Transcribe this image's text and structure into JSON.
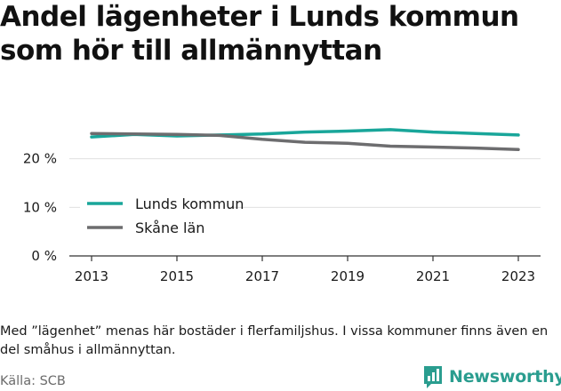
{
  "title": "Andel lägenheter i Lunds kommun\nsom hör till allmännyttan",
  "note": "Med ”lägenhet” menas här bostäder i flerfamiljshus. I vissa kommuner finns även en del småhus i allmännyttan.",
  "source": "Källa: SCB",
  "brand": {
    "name": "Newsworthy",
    "icon": "bar-chart-speech-icon",
    "color": "#2a9d8f"
  },
  "colors": {
    "Lunds kommun": "#19a69a",
    "Skåne län": "#6d6d6f",
    "grid": "#e0e0e0",
    "axis": "#333333"
  },
  "chart_data": {
    "type": "line",
    "x": [
      2013,
      2014,
      2015,
      2016,
      2017,
      2018,
      2019,
      2020,
      2021,
      2022,
      2023
    ],
    "series": [
      {
        "name": "Lunds kommun",
        "values": [
          24.5,
          25.0,
          24.7,
          24.9,
          25.1,
          25.5,
          25.7,
          26.0,
          25.5,
          25.2,
          24.9
        ]
      },
      {
        "name": "Skåne län",
        "values": [
          25.2,
          25.1,
          25.0,
          24.8,
          24.0,
          23.4,
          23.2,
          22.6,
          22.4,
          22.2,
          21.9
        ]
      }
    ],
    "x_ticks": [
      2013,
      2015,
      2017,
      2019,
      2021,
      2023
    ],
    "y_ticks": [
      0,
      10,
      20
    ],
    "y_tick_labels": [
      "0 %",
      "10 %",
      "20 %"
    ],
    "xlim": [
      2013,
      2023
    ],
    "ylim": [
      0,
      30
    ],
    "grid": true,
    "legend_position": "lower-left"
  }
}
